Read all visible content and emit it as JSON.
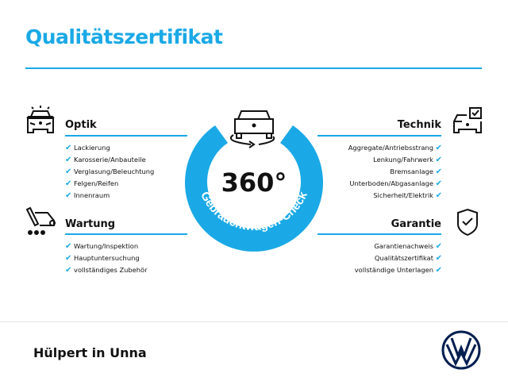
{
  "title": "Qualitätszertifikat",
  "colors": {
    "accent": "#1aa9e6",
    "brand": "#001e50"
  },
  "badge": {
    "value": "360°",
    "ring_text": "Gebrauchtwagen-Check",
    "icon": "car-rotate-icon"
  },
  "sections": {
    "optik": {
      "title": "Optik",
      "icon": "car-lights-icon",
      "items": [
        "Lackierung",
        "Karosserie/Anbauteile",
        "Verglasung/Beleuchtung",
        "Felgen/Reifen",
        "Innenraum"
      ]
    },
    "wartung": {
      "title": "Wartung",
      "icon": "service-tool-icon",
      "items": [
        "Wartung/Inspektion",
        "Hauptuntersuchung",
        "vollständiges Zubehör"
      ]
    },
    "technik": {
      "title": "Technik",
      "icon": "car-checkbox-icon",
      "items": [
        "Aggregate/Antriebsstrang",
        "Lenkung/Fahrwerk",
        "Bremsanlage",
        "Unterboden/Abgasanlage",
        "Sicherheit/Elektrik"
      ]
    },
    "garantie": {
      "title": "Garantie",
      "icon": "shield-check-icon",
      "items": [
        "Garantienachweis",
        "Qualitätszertifikat",
        "vollständige Unterlagen"
      ]
    }
  },
  "check_mark": "✔",
  "footer": {
    "dealer": "Hülpert in Unna",
    "logo": "vw-logo"
  }
}
